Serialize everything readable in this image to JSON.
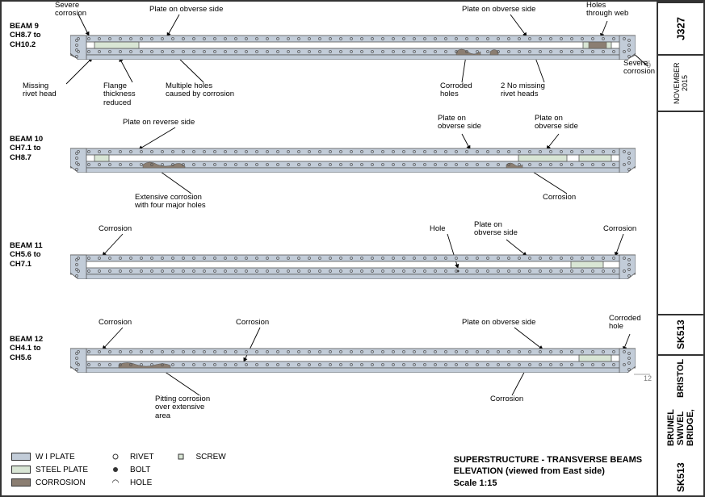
{
  "titleblock": {
    "job": "J327",
    "date": "NOVEMBER 2015",
    "sk1": "SK513",
    "title_line1": "BRUNEL SWIVEL BRIDGE,",
    "title_line2": "BRISTOL",
    "sk2": "SK513"
  },
  "drawing_title": {
    "line1": "SUPERSTRUCTURE - TRANSVERSE BEAMS",
    "line2": "ELEVATION (viewed from East side)",
    "line3": "Scale 1:15"
  },
  "beams": {
    "b9": {
      "name": "BEAM 9",
      "ch": "CH8.7 to CH10.2",
      "tag": "9"
    },
    "b10": {
      "name": "BEAM 10",
      "ch": "CH7.1 to CH8.7",
      "tag": ""
    },
    "b11": {
      "name": "BEAM 11",
      "ch": "CH5.6 to CH7.1",
      "tag": ""
    },
    "b12": {
      "name": "BEAM 12",
      "ch": "CH4.1 to CH5.6",
      "tag": "12"
    }
  },
  "callouts": {
    "c1": "Severe\ncorrosion",
    "c2": "Plate on obverse side",
    "c3": "Plate on obverse side",
    "c4": "Holes\nthrough web",
    "c5": "Severe\ncorrosion",
    "c6": "Missing\nrivet head",
    "c7": "Flange\nthickness\nreduced",
    "c8": "Multiple holes\ncaused by corrosion",
    "c9": "Corroded\nholes",
    "c10": "2 No missing\nrivet heads",
    "c11": "Plate on reverse side",
    "c12": "Plate on\nobverse side",
    "c13": "Plate on\nobverse side",
    "c14": "Extensive corrosion\nwith four major holes",
    "c15": "Corrosion",
    "c16": "Corrosion",
    "c17": "Hole",
    "c18": "Plate on\nobverse side",
    "c19": "Corrosion",
    "c20": "Corrosion",
    "c21": "Corrosion",
    "c22": "Plate on obverse side",
    "c23": "Corroded\nhole",
    "c24": "Pitting corrosion\nover extensive\narea",
    "c25": "Corrosion"
  },
  "legend": {
    "wi": {
      "label": "W I PLATE",
      "color": "#c2ccd8"
    },
    "sp": {
      "label": "STEEL PLATE",
      "color": "#d9e6d5"
    },
    "cor": {
      "label": "CORROSION",
      "color": "#8b7e72"
    },
    "rivet": {
      "label": "RIVET"
    },
    "bolt": {
      "label": "BOLT"
    },
    "hole": {
      "label": "HOLE"
    },
    "screw": {
      "label": "SCREW"
    }
  },
  "style": {
    "beam_width": 700,
    "beam_height": 44,
    "flange_h": 8,
    "rivet_r": 1.5,
    "colors": {
      "flange": "#c2ccd8",
      "plate": "#d9e6d5",
      "corrosion": "#8b7e72",
      "outline": "#555555",
      "text": "#000000"
    }
  }
}
